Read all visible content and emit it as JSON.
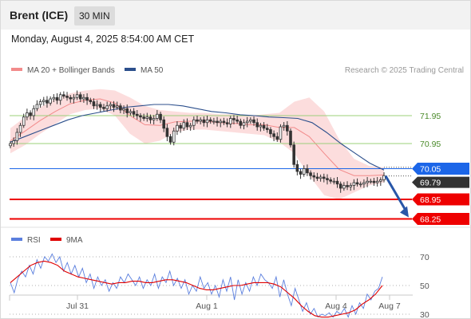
{
  "header": {
    "title": "Brent (ICE)",
    "interval": "30 MIN",
    "datetime": "Monday, August 4, 2025 8:54:00 AM CET"
  },
  "legend": {
    "ma20": {
      "label": "MA 20 + Bollinger Bands",
      "color": "#f28b8b"
    },
    "ma50": {
      "label": "MA 50",
      "color": "#2c4f8c"
    },
    "credit": "Research © 2025 Trading Central"
  },
  "rsi_legend": {
    "rsi": {
      "label": "RSI",
      "color": "#5b7fde"
    },
    "ma9": {
      "label": "9MA",
      "color": "#e00000"
    }
  },
  "colors": {
    "resistance_green": "#9bd07a",
    "pivot_blue": "#1c66e8",
    "support_red": "#ee0000",
    "bollinger_fill": "#fbd2d2",
    "candle_up": "#333333",
    "candle_down": "#333333",
    "arrow": "#2856a8"
  },
  "chart_data": [
    {
      "type": "candlestick",
      "x_labels": [
        "Jul 31",
        "Aug 1",
        "Aug 4",
        "Aug 7"
      ],
      "ylim": [
        67.75,
        72.75
      ],
      "levels": [
        {
          "value": 71.95,
          "label": "71.95",
          "kind": "resistance",
          "color": "#9bd07a"
        },
        {
          "value": 70.95,
          "label": "70.95",
          "kind": "resistance",
          "color": "#9bd07a"
        },
        {
          "value": 70.05,
          "label": "70.05",
          "kind": "pivot",
          "color": "#1c66e8"
        },
        {
          "value": 68.95,
          "label": "68.95",
          "kind": "support",
          "color": "#ee0000"
        },
        {
          "value": 68.25,
          "label": "68.25",
          "kind": "support",
          "color": "#ee0000"
        }
      ],
      "last_price": {
        "value": 69.79,
        "label": "69.79"
      },
      "close_series": [
        70.95,
        71.05,
        71.35,
        71.6,
        71.9,
        72.05,
        71.95,
        72.2,
        72.35,
        72.45,
        72.5,
        72.4,
        72.55,
        72.6,
        72.5,
        72.7,
        72.65,
        72.6,
        72.55,
        72.6,
        72.7,
        72.55,
        72.6,
        72.5,
        72.45,
        72.3,
        72.35,
        72.25,
        72.2,
        72.3,
        72.35,
        72.25,
        72.3,
        72.15,
        72.2,
        72.05,
        72.1,
        72.0,
        71.95,
        71.9,
        71.85,
        71.9,
        71.8,
        71.85,
        72.0,
        71.8,
        71.5,
        71.2,
        71.0,
        71.4,
        71.6,
        71.5,
        71.7,
        71.55,
        71.6,
        71.8,
        71.75,
        71.8,
        71.7,
        71.8,
        71.75,
        71.75,
        71.7,
        71.75,
        71.7,
        71.65,
        71.85,
        71.8,
        71.75,
        71.6,
        71.7,
        71.75,
        71.8,
        71.7,
        71.55,
        71.6,
        71.5,
        71.45,
        71.3,
        71.2,
        71.1,
        71.55,
        71.6,
        71.4,
        70.9,
        70.2,
        69.95,
        69.85,
        70.05,
        69.9,
        69.8,
        69.75,
        69.7,
        69.75,
        69.7,
        69.65,
        69.6,
        69.6,
        69.5,
        69.35,
        69.45,
        69.4,
        69.45,
        69.55,
        69.5,
        69.5,
        69.55,
        69.6,
        69.6,
        69.55,
        69.6,
        69.65,
        69.8
      ],
      "ma50": {
        "label": "MA 50",
        "values": [
          71.0,
          71.2,
          71.4,
          71.6,
          71.8,
          71.95,
          72.05,
          72.15,
          72.25,
          72.3,
          72.35,
          72.35,
          72.3,
          72.2,
          72.1,
          72.05,
          71.98,
          71.95,
          71.9,
          71.88,
          71.85,
          71.7,
          71.35,
          70.95,
          70.6,
          70.25,
          70.0
        ]
      },
      "bollinger_upper": [
        71.5,
        71.9,
        72.25,
        72.55,
        72.75,
        72.85,
        72.9,
        72.85,
        72.6,
        72.3,
        72.15,
        72.1,
        72.05,
        72.05,
        72.0,
        72.0,
        71.95,
        72.0,
        72.05,
        72.45,
        72.6,
        72.1,
        71.1,
        70.4,
        70.15,
        70.1
      ],
      "bollinger_lower": [
        70.6,
        70.9,
        71.3,
        71.65,
        72.0,
        72.15,
        72.2,
        71.95,
        71.3,
        70.95,
        71.05,
        71.35,
        71.45,
        71.45,
        71.4,
        71.35,
        71.3,
        71.25,
        71.0,
        70.6,
        69.8,
        69.1,
        68.95,
        69.2,
        69.45,
        69.55
      ],
      "projection": {
        "from": 69.79,
        "to": 68.25
      }
    },
    {
      "type": "line",
      "name": "RSI",
      "ylim": [
        20,
        80
      ],
      "levels": [
        {
          "value": 70,
          "label": "70"
        },
        {
          "value": 50,
          "label": "50"
        },
        {
          "value": 30,
          "label": "30"
        }
      ],
      "series": [
        {
          "name": "RSI",
          "values": [
            52,
            45,
            55,
            60,
            56,
            64,
            58,
            68,
            62,
            70,
            67,
            72,
            66,
            70,
            60,
            66,
            58,
            64,
            56,
            62,
            52,
            58,
            48,
            56,
            50,
            54,
            46,
            52,
            48,
            56,
            52,
            58,
            54,
            50,
            56,
            48,
            54,
            50,
            58,
            48,
            56,
            52,
            60,
            50,
            55,
            48,
            54,
            44,
            50,
            46,
            56,
            48,
            52,
            44,
            50,
            42,
            54,
            46,
            56,
            40,
            54,
            44,
            52,
            46,
            56,
            50,
            58,
            54,
            52,
            48,
            56,
            42,
            54,
            44,
            36,
            48,
            40,
            32,
            38,
            30,
            34,
            28,
            30,
            29,
            31,
            28,
            32,
            30,
            34,
            28,
            36,
            30,
            38,
            34,
            44,
            40,
            46,
            48,
            56
          ]
        },
        {
          "name": "9MA",
          "values": [
            52,
            56,
            60,
            64,
            66,
            67,
            66,
            64,
            60,
            58,
            56,
            55,
            54,
            53,
            52,
            51,
            52,
            52,
            53,
            53,
            52,
            52,
            53,
            54,
            54,
            53,
            52,
            50,
            48,
            47,
            47,
            48,
            49,
            50,
            50,
            51,
            52,
            52,
            52,
            51,
            49,
            45,
            41,
            36,
            32,
            29,
            28,
            28,
            29,
            30,
            31,
            33,
            37,
            40,
            44,
            50
          ]
        }
      ]
    }
  ]
}
